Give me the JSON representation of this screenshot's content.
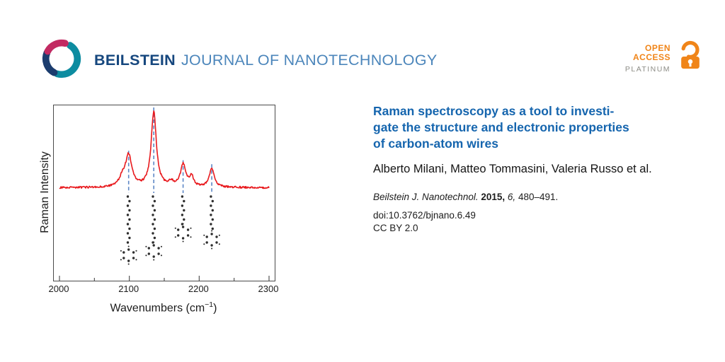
{
  "header": {
    "journal_bold": "BEILSTEIN",
    "journal_rest": "JOURNAL OF NANOTECHNOLOGY",
    "open_access": {
      "open": "OPEN",
      "access": "ACCESS",
      "platinum": "PLATINUM"
    }
  },
  "article": {
    "title_lines": [
      "Raman spectroscopy as a tool to investi-",
      "gate the structure and electronic properties",
      "of carbon-atom wires"
    ],
    "title_full": "Raman spectroscopy as a tool to investigate the structure and electronic properties of carbon-atom wires",
    "authors": "Alberto Milani, Matteo Tommasini, Valeria Russo et al.",
    "citation": {
      "journal": "Beilstein J. Nanotechnol.",
      "year": "2015,",
      "volume": "6,",
      "pages": "480–491."
    },
    "doi": "doi:10.3762/bjnano.6.49",
    "license": "CC BY 2.0"
  },
  "chart_data": {
    "type": "line",
    "title": "",
    "xlabel": "Wavenumbers (cm−1)",
    "xlabel_parts": {
      "prefix": "Wavenumbers (cm",
      "sup": "−1",
      "suffix": ")"
    },
    "ylabel": "Raman Intensity",
    "xlim": [
      2000,
      2300
    ],
    "x_ticks": [
      "2000",
      "2100",
      "2200",
      "2300"
    ],
    "x_minor_tick_step": 50,
    "grid": false,
    "legend": false,
    "line_color": "#e8191d",
    "dash_color": "#5d87c6",
    "atom_color": "#2e2e2e",
    "baseline_rel_intensity": 0.04,
    "noise_amplitude": 0.012,
    "peaks": [
      {
        "x": 2090,
        "rel_intensity": 0.1,
        "width": 5.0
      },
      {
        "x": 2099,
        "rel_intensity": 0.4,
        "width": 5.5
      },
      {
        "x": 2135,
        "rel_intensity": 0.95,
        "width": 4.5
      },
      {
        "x": 2160,
        "rel_intensity": 0.05,
        "width": 5.0
      },
      {
        "x": 2177,
        "rel_intensity": 0.28,
        "width": 4.5
      },
      {
        "x": 2189,
        "rel_intensity": 0.13,
        "width": 3.5
      },
      {
        "x": 2218,
        "rel_intensity": 0.23,
        "width": 4.5
      }
    ],
    "peak_assignment_lines_x": [
      2099,
      2135,
      2177,
      2218
    ],
    "molecules": [
      {
        "x": 2099,
        "chain_end_y": 200,
        "ring_y": 212
      },
      {
        "x": 2135,
        "chain_end_y": 194,
        "ring_y": 206
      },
      {
        "x": 2177,
        "chain_end_y": 168,
        "ring_y": 180
      },
      {
        "x": 2218,
        "chain_end_y": 178,
        "ring_y": 190
      }
    ]
  },
  "colors": {
    "title_blue": "#1565ae",
    "beilstein_navy": "#16477e",
    "journal_light_blue": "#4c86bb",
    "open_access_orange": "#f08519",
    "platinum_gray": "#8c8c86",
    "spectrum_red": "#e8191d",
    "dash_blue": "#5d87c6"
  }
}
